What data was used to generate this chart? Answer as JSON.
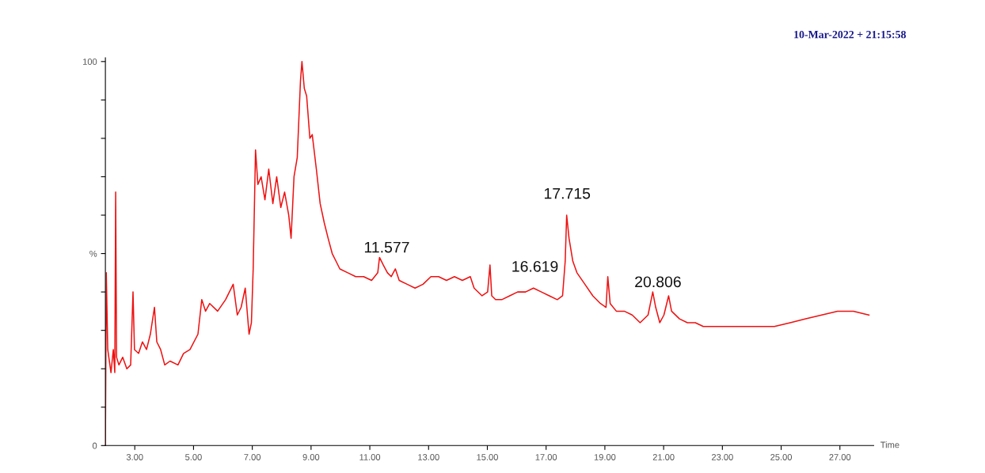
{
  "chart_data": {
    "type": "line",
    "xlabel": "Time",
    "annotations": [
      {
        "text": "11.577",
        "x": 11.577,
        "y": 46
      },
      {
        "text": "16.619",
        "x": 16.619,
        "y": 41
      },
      {
        "text": "17.715",
        "x": 17.715,
        "y": 60
      },
      {
        "text": "20.806",
        "x": 20.806,
        "y": 37
      },
      "10-Mar-2022 + 21:15:58"
    ],
    "series": [
      {
        "color": "#ee1111",
        "x": [
          2.0,
          2.03,
          2.08,
          2.19,
          2.27,
          2.32,
          2.35,
          2.38,
          2.46,
          2.59,
          2.73,
          2.86,
          2.94,
          2.99,
          3.13,
          3.26,
          3.4,
          3.53,
          3.67,
          3.75,
          3.88,
          4.02,
          4.2,
          4.47,
          4.66,
          4.88,
          5.15,
          5.28,
          5.41,
          5.55,
          5.82,
          6.09,
          6.35,
          6.49,
          6.62,
          6.76,
          6.89,
          6.97,
          7.03,
          7.11,
          7.19,
          7.3,
          7.43,
          7.56,
          7.7,
          7.83,
          7.97,
          8.1,
          8.24,
          8.32,
          8.42,
          8.53,
          8.64,
          8.69,
          8.77,
          8.85,
          8.96,
          9.04,
          9.18,
          9.31,
          9.45,
          9.58,
          9.72,
          9.85,
          9.98,
          10.25,
          10.52,
          10.79,
          11.06,
          11.27,
          11.33,
          11.46,
          11.6,
          11.73,
          11.87,
          12.0,
          12.27,
          12.54,
          12.81,
          13.08,
          13.34,
          13.61,
          13.88,
          14.15,
          14.42,
          14.55,
          14.82,
          15.01,
          15.09,
          15.15,
          15.28,
          15.49,
          15.76,
          16.03,
          16.3,
          16.57,
          16.84,
          17.11,
          17.38,
          17.56,
          17.65,
          17.7,
          17.78,
          17.91,
          18.05,
          18.32,
          18.59,
          18.85,
          19.04,
          19.1,
          19.18,
          19.39,
          19.66,
          19.93,
          20.2,
          20.47,
          20.63,
          20.73,
          20.87,
          21.01,
          21.17,
          21.27,
          21.54,
          21.81,
          22.08,
          22.35,
          22.62,
          23.16,
          23.69,
          24.23,
          24.77,
          25.31,
          25.84,
          26.38,
          26.92,
          27.46,
          27.99
        ],
        "values": [
          0,
          45,
          25,
          19,
          25,
          19,
          66,
          23,
          21,
          23,
          20,
          21,
          40,
          25,
          24,
          27,
          25,
          29,
          36,
          27,
          25,
          21,
          22,
          21,
          24,
          25,
          29,
          38,
          35,
          37,
          35,
          38,
          42,
          34,
          36,
          41,
          29,
          32,
          46,
          77,
          68,
          70,
          64,
          72,
          63,
          70,
          62,
          66,
          60,
          54,
          70,
          75,
          95,
          100,
          93,
          91,
          80,
          81,
          72,
          63,
          58,
          54,
          50,
          48,
          46,
          45,
          44,
          44,
          43,
          45,
          49,
          47,
          45,
          44,
          46,
          43,
          42,
          41,
          42,
          44,
          44,
          43,
          44,
          43,
          44,
          41,
          39,
          40,
          47,
          39,
          38,
          38,
          39,
          40,
          40,
          41,
          40,
          39,
          38,
          39,
          48,
          60,
          54,
          48,
          45,
          42,
          39,
          37,
          36,
          44,
          37,
          35,
          35,
          34,
          32,
          34,
          40,
          36,
          32,
          34,
          39,
          35,
          33,
          32,
          32,
          31,
          31,
          31,
          31,
          31,
          31,
          32,
          33,
          34,
          35,
          35,
          34
        ]
      }
    ],
    "xlim": [
      2.0,
      28.15
    ],
    "ylim": [
      0,
      101
    ],
    "xticks": [
      {
        "value": 3,
        "label": "3.00"
      },
      {
        "value": 5,
        "label": "5.00"
      },
      {
        "value": 7,
        "label": "7.00"
      },
      {
        "value": 9,
        "label": "9.00"
      },
      {
        "value": 11,
        "label": "11.00"
      },
      {
        "value": 13,
        "label": "13.00"
      },
      {
        "value": 15,
        "label": "15.00"
      },
      {
        "value": 17,
        "label": "17.00"
      },
      {
        "value": 19,
        "label": "19.00"
      },
      {
        "value": 21,
        "label": "21.00"
      },
      {
        "value": 23,
        "label": "23.00"
      },
      {
        "value": 25,
        "label": "25.00"
      },
      {
        "value": 27,
        "label": "27.00"
      }
    ],
    "yticks": [
      0,
      {
        "value": 10,
        "label": null
      },
      {
        "value": 20,
        "label": null
      },
      {
        "value": 30,
        "label": null
      },
      {
        "value": 40,
        "label": null
      },
      {
        "value": 50,
        "label": "%"
      },
      {
        "value": 60,
        "label": null
      },
      {
        "value": 70,
        "label": null
      },
      {
        "value": 80,
        "label": null
      },
      {
        "value": 90,
        "label": null
      },
      100
    ],
    "grid": false,
    "legend": false
  }
}
